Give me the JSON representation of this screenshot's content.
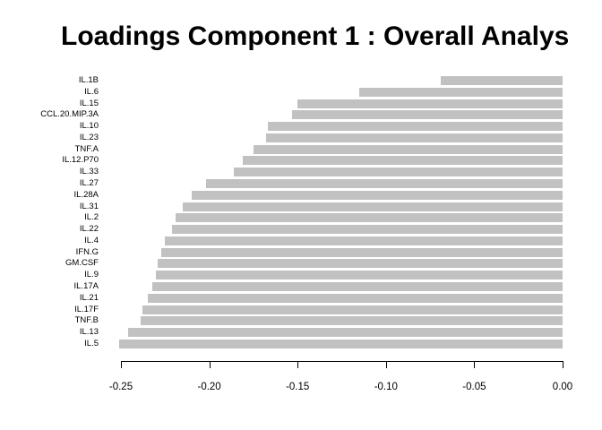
{
  "chart_data": {
    "type": "bar",
    "orientation": "horizontal",
    "title": "Loadings Component 1 : Overall Analys",
    "categories": [
      "IL.1B",
      "IL.6",
      "IL.15",
      "CCL.20.MIP.3A",
      "IL.10",
      "IL.23",
      "TNF.A",
      "IL.12.P70",
      "IL.33",
      "IL.27",
      "IL.28A",
      "IL.31",
      "IL.2",
      "IL.22",
      "IL.4",
      "IFN.G",
      "GM.CSF",
      "IL.9",
      "IL.17A",
      "IL.21",
      "IL.17F",
      "TNF.B",
      "IL.13",
      "IL.5"
    ],
    "values": [
      -0.069,
      -0.115,
      -0.15,
      -0.153,
      -0.167,
      -0.168,
      -0.175,
      -0.181,
      -0.186,
      -0.202,
      -0.21,
      -0.215,
      -0.219,
      -0.221,
      -0.225,
      -0.227,
      -0.229,
      -0.23,
      -0.232,
      -0.235,
      -0.238,
      -0.239,
      -0.246,
      -0.251
    ],
    "xlabel": "",
    "ylabel": "",
    "xlim": [
      -0.25,
      0.0
    ],
    "x_ticks": [
      {
        "value": -0.25,
        "label": "-0.25"
      },
      {
        "value": -0.2,
        "label": "-0.20"
      },
      {
        "value": -0.15,
        "label": "-0.15"
      },
      {
        "value": -0.1,
        "label": "-0.10"
      },
      {
        "value": -0.05,
        "label": "-0.05"
      },
      {
        "value": 0.0,
        "label": "0.00"
      }
    ],
    "bar_color": "#C1C1C1",
    "text_color": "#000000",
    "background_color": "#FFFFFF",
    "grid": false,
    "legend": false
  }
}
